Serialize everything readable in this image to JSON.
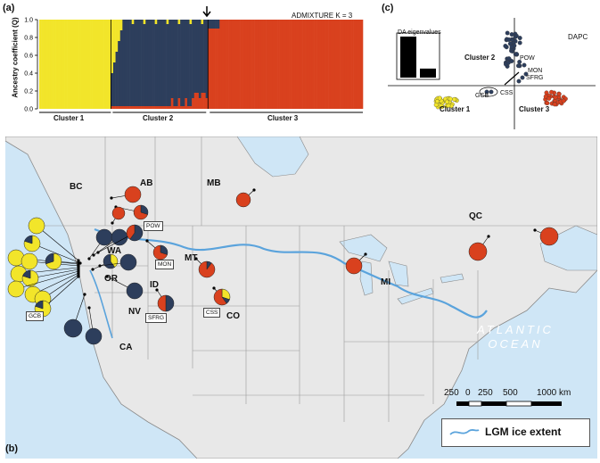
{
  "panel_a": {
    "label": "(a)",
    "title": "ADMIXTURE K = 3",
    "ylabel": "Ancestry coefficient (Q)",
    "yticks": [
      "0.0",
      "0.2",
      "0.4",
      "0.6",
      "0.8",
      "1.0"
    ],
    "clusters": [
      "Cluster 1",
      "Cluster 2",
      "Cluster 3"
    ]
  },
  "panel_b": {
    "label": "(b)",
    "regions": [
      "BC",
      "AB",
      "MB",
      "QC",
      "WA",
      "OR",
      "ID",
      "MT",
      "NV",
      "CA",
      "CO",
      "MI"
    ],
    "site_labels": [
      "POW",
      "MON",
      "SFRG",
      "CSS",
      "GCB"
    ],
    "ocean": [
      "ATLANTIC",
      "OCEAN"
    ],
    "scale": {
      "ticks": [
        "250",
        "0",
        "250",
        "500",
        "1000 km"
      ]
    },
    "legend": "LGM ice extent"
  },
  "panel_c": {
    "label": "(c)",
    "title": "DAPC",
    "eigen_title": "DA eigenvalues",
    "eigen_values": [
      1.0,
      0.22
    ],
    "cluster_labels": [
      "Cluster 1",
      "Cluster 2",
      "Cluster 3"
    ],
    "point_labels": [
      "POW",
      "MON",
      "SFRG",
      "CSS",
      "GCB"
    ]
  },
  "colors": {
    "cluster1": "#f2e52a",
    "cluster2": "#2d3e5c",
    "cluster3": "#d9411e",
    "ice": "#5aa3dc",
    "water": "#cfe6f6",
    "land": "#e8e8e8"
  }
}
